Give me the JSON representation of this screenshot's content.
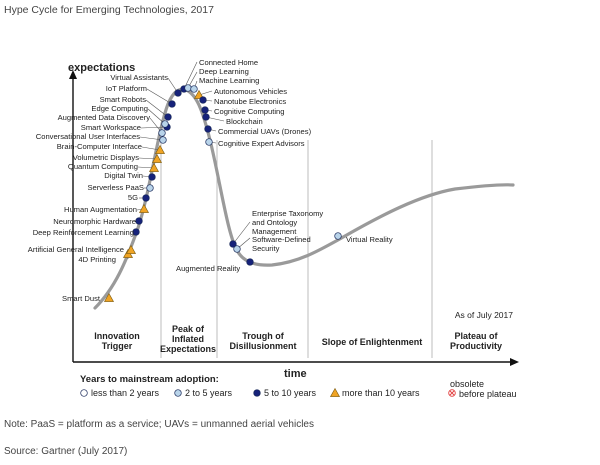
{
  "page": {
    "title": "Hype Cycle for Emerging Technologies, 2017",
    "note": "Note: PaaS = platform as a service; UAVs = unmanned aerial vehicles",
    "source": "Source: Gartner (July 2017)"
  },
  "colors": {
    "curve": "#9a9a9a",
    "axis": "#111111",
    "divider": "#bdbdbd",
    "less_than_2": "#ffffff",
    "two_to_five": "#b9d4ea",
    "five_to_ten": "#16227a",
    "more_than_10": "#f0a424",
    "obsolete": "#e24040",
    "leader": "#555555"
  },
  "chart_data": {
    "type": "line",
    "ylabel": "expectations",
    "xlabel": "time",
    "as_of": "As of July 2017",
    "phases": [
      "Innovation Trigger",
      "Peak of Inflated Expectations",
      "Trough of Disillusionment",
      "Slope of Enlightenment",
      "Plateau of Productivity"
    ],
    "legend_title": "Years to mainstream adoption:",
    "legend": [
      {
        "key": "less_than_2",
        "label": "less than 2 years",
        "marker": "circle"
      },
      {
        "key": "two_to_five",
        "label": "2 to 5 years",
        "marker": "circle"
      },
      {
        "key": "five_to_ten",
        "label": "5 to 10 years",
        "marker": "circle"
      },
      {
        "key": "more_than_10",
        "label": "more than 10 years",
        "marker": "triangle"
      },
      {
        "key": "obsolete",
        "label": "obsolete before plateau",
        "marker": "cross"
      }
    ],
    "technologies": [
      {
        "label": "Smart Dust",
        "adoption": "more_than_10",
        "phase": "Innovation Trigger"
      },
      {
        "label": "4D Printing",
        "adoption": "more_than_10",
        "phase": "Innovation Trigger"
      },
      {
        "label": "Artificial General Intelligence",
        "adoption": "more_than_10",
        "phase": "Innovation Trigger"
      },
      {
        "label": "Deep Reinforcement Learning",
        "adoption": "five_to_ten",
        "phase": "Innovation Trigger"
      },
      {
        "label": "Neuromorphic Hardware",
        "adoption": "five_to_ten",
        "phase": "Innovation Trigger"
      },
      {
        "label": "Human Augmentation",
        "adoption": "more_than_10",
        "phase": "Innovation Trigger"
      },
      {
        "label": "5G",
        "adoption": "five_to_ten",
        "phase": "Innovation Trigger"
      },
      {
        "label": "Serverless PaaS",
        "adoption": "two_to_five",
        "phase": "Innovation Trigger"
      },
      {
        "label": "Digital Twin",
        "adoption": "five_to_ten",
        "phase": "Innovation Trigger"
      },
      {
        "label": "Quantum Computing",
        "adoption": "more_than_10",
        "phase": "Innovation Trigger"
      },
      {
        "label": "Volumetric Displays",
        "adoption": "more_than_10",
        "phase": "Innovation Trigger"
      },
      {
        "label": "Brain-Computer Interface",
        "adoption": "more_than_10",
        "phase": "Innovation Trigger"
      },
      {
        "label": "Conversational User Interfaces",
        "adoption": "two_to_five",
        "phase": "Innovation Trigger"
      },
      {
        "label": "Smart Workspace",
        "adoption": "five_to_ten",
        "phase": "Innovation Trigger"
      },
      {
        "label": "Augmented Data Discovery",
        "adoption": "two_to_five",
        "phase": "Peak of Inflated Expectations"
      },
      {
        "label": "Edge Computing",
        "adoption": "two_to_five",
        "phase": "Peak of Inflated Expectations"
      },
      {
        "label": "Smart Robots",
        "adoption": "five_to_ten",
        "phase": "Peak of Inflated Expectations"
      },
      {
        "label": "IoT Platform",
        "adoption": "five_to_ten",
        "phase": "Peak of Inflated Expectations"
      },
      {
        "label": "Virtual Assistants",
        "adoption": "five_to_ten",
        "phase": "Peak of Inflated Expectations"
      },
      {
        "label": "Connected Home",
        "adoption": "five_to_ten",
        "phase": "Peak of Inflated Expectations"
      },
      {
        "label": "Deep Learning",
        "adoption": "two_to_five",
        "phase": "Peak of Inflated Expectations"
      },
      {
        "label": "Machine Learning",
        "adoption": "two_to_five",
        "phase": "Peak of Inflated Expectations"
      },
      {
        "label": "Autonomous Vehicles",
        "adoption": "more_than_10",
        "phase": "Peak of Inflated Expectations"
      },
      {
        "label": "Nanotube Electronics",
        "adoption": "five_to_ten",
        "phase": "Peak of Inflated Expectations"
      },
      {
        "label": "Cognitive Computing",
        "adoption": "five_to_ten",
        "phase": "Peak of Inflated Expectations"
      },
      {
        "label": "Blockchain",
        "adoption": "five_to_ten",
        "phase": "Peak of Inflated Expectations"
      },
      {
        "label": "Commercial UAVs (Drones)",
        "adoption": "five_to_ten",
        "phase": "Peak of Inflated Expectations"
      },
      {
        "label": "Cognitive Expert Advisors",
        "adoption": "two_to_five",
        "phase": "Peak of Inflated Expectations"
      },
      {
        "label": "Enterprise Taxonomy and Ontology Management",
        "adoption": "five_to_ten",
        "phase": "Trough of Disillusionment"
      },
      {
        "label": "Software-Defined Security",
        "adoption": "two_to_five",
        "phase": "Trough of Disillusionment"
      },
      {
        "label": "Augmented Reality",
        "adoption": "five_to_ten",
        "phase": "Trough of Disillusionment"
      },
      {
        "label": "Virtual Reality",
        "adoption": "two_to_five",
        "phase": "Slope of Enlightenment"
      }
    ]
  }
}
